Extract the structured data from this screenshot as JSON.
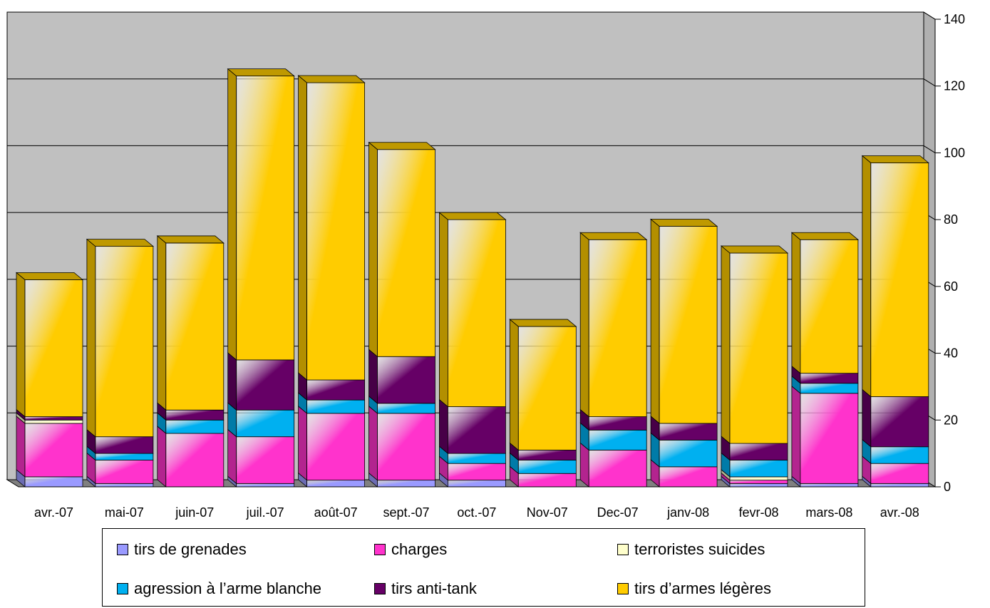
{
  "chart_data": {
    "type": "bar",
    "stacked": true,
    "three_d": true,
    "categories": [
      "avr.-07",
      "mai-07",
      "juin-07",
      "juil.-07",
      "août-07",
      "sept.-07",
      "oct.-07",
      "Nov-07",
      "Dec-07",
      "janv-08",
      "fevr-08",
      "mars-08",
      "avr.-08"
    ],
    "series": [
      {
        "name": "tirs de grenades",
        "color": "#9a9aff",
        "values": [
          3,
          1,
          0,
          1,
          2,
          2,
          2,
          0,
          0,
          0,
          1,
          1,
          1
        ]
      },
      {
        "name": "charges",
        "color": "#ff33cc",
        "values": [
          16,
          7,
          16,
          14,
          20,
          20,
          5,
          4,
          11,
          6,
          1,
          27,
          6
        ]
      },
      {
        "name": "terroristes suicides",
        "color": "#ffffcc",
        "values": [
          1,
          0,
          0,
          0,
          0,
          0,
          0,
          0,
          0,
          0,
          1,
          0,
          0
        ]
      },
      {
        "name": "agression à l’arme blanche",
        "color": "#00b0f0",
        "values": [
          0,
          2,
          4,
          8,
          4,
          3,
          3,
          4,
          6,
          8,
          5,
          3,
          5
        ]
      },
      {
        "name": "tirs anti-tank",
        "color": "#660066",
        "values": [
          1,
          5,
          3,
          15,
          6,
          14,
          14,
          3,
          4,
          5,
          5,
          3,
          15
        ]
      },
      {
        "name": "tirs d’armes légères",
        "color": "#ffcc00",
        "values": [
          41,
          57,
          50,
          85,
          89,
          62,
          56,
          37,
          53,
          59,
          57,
          40,
          70
        ]
      }
    ],
    "y_axis": {
      "ylim": [
        0,
        140
      ],
      "ticks": [
        0,
        20,
        40,
        60,
        80,
        100,
        120,
        140
      ],
      "position": "right"
    },
    "grid": true,
    "legend_position": "bottom"
  }
}
